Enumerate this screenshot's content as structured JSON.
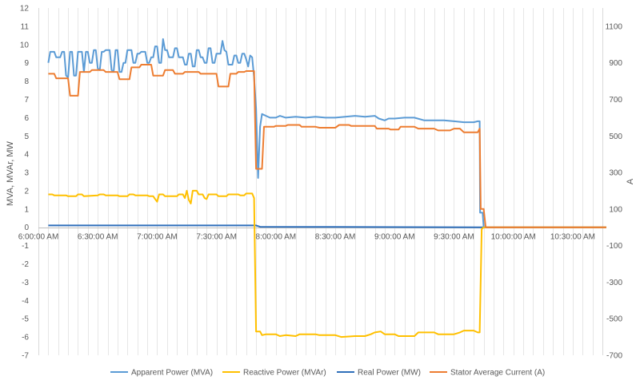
{
  "chart_data": {
    "type": "line",
    "title": "",
    "x_axis": {
      "type": "time",
      "start": "6:00:00 AM",
      "end": "10:45:00 AM",
      "tick_labels": [
        "6:00:00 AM",
        "6:30:00 AM",
        "7:00:00 AM",
        "7:30:00 AM",
        "8:00:00 AM",
        "8:30:00 AM",
        "9:00:00 AM",
        "9:30:00 AM",
        "10:00:00 AM",
        "10:30:00 AM"
      ],
      "minor_grid_interval_minutes": 5
    },
    "y_left": {
      "label": "MVA, MVAr, MW",
      "range": [
        -7,
        12
      ],
      "ticks": [
        -7,
        -6,
        -5,
        -4,
        -3,
        -2,
        -1,
        0,
        1,
        2,
        3,
        4,
        5,
        6,
        7,
        8,
        9,
        10,
        11,
        12
      ]
    },
    "y_right": {
      "label": "A",
      "range": [
        -700,
        1200
      ],
      "tick_labels": [
        -700,
        -500,
        -300,
        -100,
        100,
        300,
        500,
        700,
        900,
        1100
      ]
    },
    "grid": "vertical",
    "legend_position": "bottom",
    "series": [
      {
        "name": "Apparent Power (MVA)",
        "axis": "left",
        "color": "#5b9bd5",
        "points": [
          [
            "6:05",
            9.0
          ],
          [
            "6:06",
            9.6
          ],
          [
            "6:08",
            9.6
          ],
          [
            "6:09",
            9.3
          ],
          [
            "6:11",
            9.3
          ],
          [
            "6:12",
            9.6
          ],
          [
            "6:13",
            9.6
          ],
          [
            "6:14",
            8.3
          ],
          [
            "6:15",
            8.2
          ],
          [
            "6:16",
            9.6
          ],
          [
            "6:17",
            9.6
          ],
          [
            "6:18",
            8.3
          ],
          [
            "6:19",
            8.3
          ],
          [
            "6:20",
            9.6
          ],
          [
            "6:22",
            9.6
          ],
          [
            "6:23",
            8.5
          ],
          [
            "6:24",
            9.6
          ],
          [
            "6:25",
            9.6
          ],
          [
            "6:26",
            9.0
          ],
          [
            "6:27",
            9.0
          ],
          [
            "6:28",
            9.7
          ],
          [
            "6:29",
            9.7
          ],
          [
            "6:30",
            8.7
          ],
          [
            "6:31",
            8.6
          ],
          [
            "6:32",
            9.6
          ],
          [
            "6:33",
            9.6
          ],
          [
            "6:34",
            9.7
          ],
          [
            "6:36",
            9.7
          ],
          [
            "6:37",
            8.6
          ],
          [
            "6:38",
            8.5
          ],
          [
            "6:39",
            9.7
          ],
          [
            "6:40",
            9.7
          ],
          [
            "6:41",
            8.5
          ],
          [
            "6:42",
            8.5
          ],
          [
            "6:43",
            9.0
          ],
          [
            "6:44",
            9.0
          ],
          [
            "6:45",
            9.7
          ],
          [
            "6:47",
            9.7
          ],
          [
            "6:48",
            9.0
          ],
          [
            "6:49",
            9.0
          ],
          [
            "6:50",
            9.5
          ],
          [
            "6:51",
            9.5
          ],
          [
            "6:52",
            9.6
          ],
          [
            "6:54",
            9.6
          ],
          [
            "6:55",
            9.0
          ],
          [
            "6:56",
            9.0
          ],
          [
            "6:57",
            9.3
          ],
          [
            "6:58",
            9.3
          ],
          [
            "6:59",
            9.9
          ],
          [
            "7:00",
            9.9
          ],
          [
            "7:01",
            9.0
          ],
          [
            "7:02",
            9.0
          ],
          [
            "7:03",
            10.3
          ],
          [
            "7:04",
            9.7
          ],
          [
            "7:05",
            9.7
          ],
          [
            "7:06",
            9.3
          ],
          [
            "7:08",
            9.3
          ],
          [
            "7:09",
            9.8
          ],
          [
            "7:10",
            9.8
          ],
          [
            "7:11",
            9.3
          ],
          [
            "7:13",
            9.3
          ],
          [
            "7:14",
            8.9
          ],
          [
            "7:15",
            8.9
          ],
          [
            "7:16",
            9.5
          ],
          [
            "7:17",
            9.5
          ],
          [
            "7:18",
            8.8
          ],
          [
            "7:19",
            8.8
          ],
          [
            "7:20",
            9.7
          ],
          [
            "7:21",
            9.7
          ],
          [
            "7:22",
            9.3
          ],
          [
            "7:23",
            9.3
          ],
          [
            "7:24",
            9.0
          ],
          [
            "7:25",
            9.0
          ],
          [
            "7:26",
            9.8
          ],
          [
            "7:27",
            9.8
          ],
          [
            "7:28",
            9.0
          ],
          [
            "7:29",
            9.0
          ],
          [
            "7:30",
            9.5
          ],
          [
            "7:32",
            9.5
          ],
          [
            "7:33",
            10.2
          ],
          [
            "7:34",
            9.7
          ],
          [
            "7:35",
            9.6
          ],
          [
            "7:36",
            8.9
          ],
          [
            "7:38",
            8.9
          ],
          [
            "7:39",
            9.4
          ],
          [
            "7:40",
            9.4
          ],
          [
            "7:41",
            9.0
          ],
          [
            "7:42",
            9.0
          ],
          [
            "7:43",
            9.5
          ],
          [
            "7:44",
            9.5
          ],
          [
            "7:45",
            9.2
          ],
          [
            "7:46",
            8.8
          ],
          [
            "7:47",
            9.4
          ],
          [
            "7:48",
            9.3
          ],
          [
            "7:49",
            8.2
          ],
          [
            "7:50",
            6.5
          ],
          [
            "7:51",
            2.7
          ],
          [
            "7:52",
            5.5
          ],
          [
            "7:53",
            6.2
          ],
          [
            "7:55",
            6.1
          ],
          [
            "7:57",
            6.0
          ],
          [
            "8:00",
            6.0
          ],
          [
            "8:02",
            6.1
          ],
          [
            "8:05",
            6.0
          ],
          [
            "8:10",
            6.05
          ],
          [
            "8:15",
            6.0
          ],
          [
            "8:20",
            6.05
          ],
          [
            "8:25",
            6.0
          ],
          [
            "8:30",
            6.0
          ],
          [
            "8:35",
            6.05
          ],
          [
            "8:40",
            6.1
          ],
          [
            "8:45",
            6.05
          ],
          [
            "8:50",
            6.1
          ],
          [
            "8:52",
            5.95
          ],
          [
            "8:55",
            5.85
          ],
          [
            "8:57",
            5.95
          ],
          [
            "9:00",
            5.95
          ],
          [
            "9:05",
            6.0
          ],
          [
            "9:10",
            6.0
          ],
          [
            "9:15",
            5.85
          ],
          [
            "9:20",
            5.85
          ],
          [
            "9:25",
            5.85
          ],
          [
            "9:30",
            5.8
          ],
          [
            "9:35",
            5.75
          ],
          [
            "9:40",
            5.75
          ],
          [
            "9:42",
            5.8
          ],
          [
            "9:43",
            5.8
          ],
          [
            "9:43.2",
            0.8
          ],
          [
            "9:44.5",
            0.8
          ],
          [
            "9:45",
            0.0
          ],
          [
            "10:47",
            0.0
          ]
        ]
      },
      {
        "name": "Reactive Power (MVAr)",
        "axis": "left",
        "color": "#ffc000",
        "points": [
          [
            "6:05",
            1.8
          ],
          [
            "6:07",
            1.8
          ],
          [
            "6:08",
            1.75
          ],
          [
            "6:14",
            1.75
          ],
          [
            "6:15",
            1.7
          ],
          [
            "6:19",
            1.7
          ],
          [
            "6:20",
            1.8
          ],
          [
            "6:22",
            1.8
          ],
          [
            "6:23",
            1.7
          ],
          [
            "6:30",
            1.75
          ],
          [
            "6:31",
            1.8
          ],
          [
            "6:33",
            1.8
          ],
          [
            "6:34",
            1.75
          ],
          [
            "6:40",
            1.75
          ],
          [
            "6:41",
            1.7
          ],
          [
            "6:45",
            1.7
          ],
          [
            "6:46",
            1.8
          ],
          [
            "6:48",
            1.8
          ],
          [
            "6:49",
            1.75
          ],
          [
            "6:55",
            1.75
          ],
          [
            "6:56",
            1.7
          ],
          [
            "6:58",
            1.7
          ],
          [
            "6:59",
            1.55
          ],
          [
            "7:00",
            1.4
          ],
          [
            "7:01",
            1.8
          ],
          [
            "7:03",
            1.8
          ],
          [
            "7:04",
            1.7
          ],
          [
            "7:10",
            1.7
          ],
          [
            "7:11",
            1.8
          ],
          [
            "7:13",
            1.8
          ],
          [
            "7:14",
            1.6
          ],
          [
            "7:15",
            2.0
          ],
          [
            "7:16",
            1.5
          ],
          [
            "7:17",
            1.3
          ],
          [
            "7:18",
            2.0
          ],
          [
            "7:20",
            2.0
          ],
          [
            "7:21",
            1.8
          ],
          [
            "7:23",
            1.8
          ],
          [
            "7:24",
            1.6
          ],
          [
            "7:25",
            1.55
          ],
          [
            "7:26",
            1.8
          ],
          [
            "7:30",
            1.8
          ],
          [
            "7:31",
            1.7
          ],
          [
            "7:35",
            1.7
          ],
          [
            "7:36",
            1.8
          ],
          [
            "7:41",
            1.8
          ],
          [
            "7:42",
            1.75
          ],
          [
            "7:44",
            1.75
          ],
          [
            "7:45",
            1.85
          ],
          [
            "7:48",
            1.85
          ],
          [
            "7:49",
            1.6
          ],
          [
            "7:50",
            -5.7
          ],
          [
            "7:52",
            -5.7
          ],
          [
            "7:53",
            -5.9
          ],
          [
            "7:55",
            -5.85
          ],
          [
            "8:00",
            -5.85
          ],
          [
            "8:02",
            -5.95
          ],
          [
            "8:05",
            -5.9
          ],
          [
            "8:10",
            -5.95
          ],
          [
            "8:12",
            -5.85
          ],
          [
            "8:20",
            -5.85
          ],
          [
            "8:22",
            -5.9
          ],
          [
            "8:30",
            -5.9
          ],
          [
            "8:33",
            -6.0
          ],
          [
            "8:40",
            -5.95
          ],
          [
            "8:45",
            -5.95
          ],
          [
            "8:48",
            -5.85
          ],
          [
            "8:50",
            -5.75
          ],
          [
            "8:53",
            -5.7
          ],
          [
            "8:55",
            -5.85
          ],
          [
            "9:00",
            -5.85
          ],
          [
            "9:02",
            -5.95
          ],
          [
            "9:10",
            -5.95
          ],
          [
            "9:12",
            -5.75
          ],
          [
            "9:20",
            -5.75
          ],
          [
            "9:22",
            -5.85
          ],
          [
            "9:30",
            -5.85
          ],
          [
            "9:33",
            -5.75
          ],
          [
            "9:35",
            -5.65
          ],
          [
            "9:40",
            -5.65
          ],
          [
            "9:42",
            -5.75
          ],
          [
            "9:43",
            -5.75
          ],
          [
            "9:44",
            -0.1
          ],
          [
            "9:45",
            0.0
          ],
          [
            "10:47",
            0.0
          ]
        ]
      },
      {
        "name": "Real Power (MW)",
        "axis": "left",
        "color": "#2f6fba",
        "points": [
          [
            "6:05",
            0.1
          ],
          [
            "7:50",
            0.1
          ],
          [
            "7:52",
            0.03
          ],
          [
            "8:30",
            0.02
          ],
          [
            "9:45",
            0.0
          ],
          [
            "10:47",
            0.0
          ]
        ]
      },
      {
        "name": "Stator Average Current (A)",
        "axis": "right",
        "color": "#ed7d31",
        "points": [
          [
            "6:05",
            840
          ],
          [
            "6:08",
            840
          ],
          [
            "6:09",
            815
          ],
          [
            "6:15",
            815
          ],
          [
            "6:16",
            720
          ],
          [
            "6:20",
            720
          ],
          [
            "6:21",
            850
          ],
          [
            "6:26",
            850
          ],
          [
            "6:27",
            860
          ],
          [
            "6:33",
            860
          ],
          [
            "6:34",
            850
          ],
          [
            "6:40",
            850
          ],
          [
            "6:41",
            810
          ],
          [
            "6:46",
            810
          ],
          [
            "6:47",
            875
          ],
          [
            "6:51",
            875
          ],
          [
            "6:52",
            890
          ],
          [
            "6:57",
            890
          ],
          [
            "6:58",
            830
          ],
          [
            "7:03",
            830
          ],
          [
            "7:04",
            860
          ],
          [
            "7:08",
            860
          ],
          [
            "7:09",
            840
          ],
          [
            "7:13",
            840
          ],
          [
            "7:14",
            850
          ],
          [
            "7:21",
            850
          ],
          [
            "7:22",
            840
          ],
          [
            "7:30",
            840
          ],
          [
            "7:31",
            770
          ],
          [
            "7:36",
            770
          ],
          [
            "7:37",
            840
          ],
          [
            "7:40",
            840
          ],
          [
            "7:41",
            850
          ],
          [
            "7:44",
            850
          ],
          [
            "7:45",
            855
          ],
          [
            "7:49",
            855
          ],
          [
            "7:50",
            320
          ],
          [
            "7:53",
            320
          ],
          [
            "7:54",
            550
          ],
          [
            "7:59",
            550
          ],
          [
            "8:00",
            555
          ],
          [
            "8:05",
            555
          ],
          [
            "8:06",
            560
          ],
          [
            "8:12",
            560
          ],
          [
            "8:13",
            550
          ],
          [
            "8:20",
            550
          ],
          [
            "8:22",
            545
          ],
          [
            "8:30",
            545
          ],
          [
            "8:32",
            560
          ],
          [
            "8:37",
            560
          ],
          [
            "8:38",
            555
          ],
          [
            "8:50",
            555
          ],
          [
            "8:51",
            540
          ],
          [
            "8:57",
            540
          ],
          [
            "8:58",
            535
          ],
          [
            "9:02",
            535
          ],
          [
            "9:03",
            550
          ],
          [
            "9:10",
            550
          ],
          [
            "9:12",
            540
          ],
          [
            "9:20",
            540
          ],
          [
            "9:22",
            530
          ],
          [
            "9:28",
            530
          ],
          [
            "9:30",
            540
          ],
          [
            "9:33",
            540
          ],
          [
            "9:35",
            520
          ],
          [
            "9:42",
            520
          ],
          [
            "9:43",
            540
          ],
          [
            "9:43.5",
            100
          ],
          [
            "9:45",
            100
          ],
          [
            "9:46",
            0
          ],
          [
            "10:47",
            0
          ]
        ]
      }
    ]
  }
}
